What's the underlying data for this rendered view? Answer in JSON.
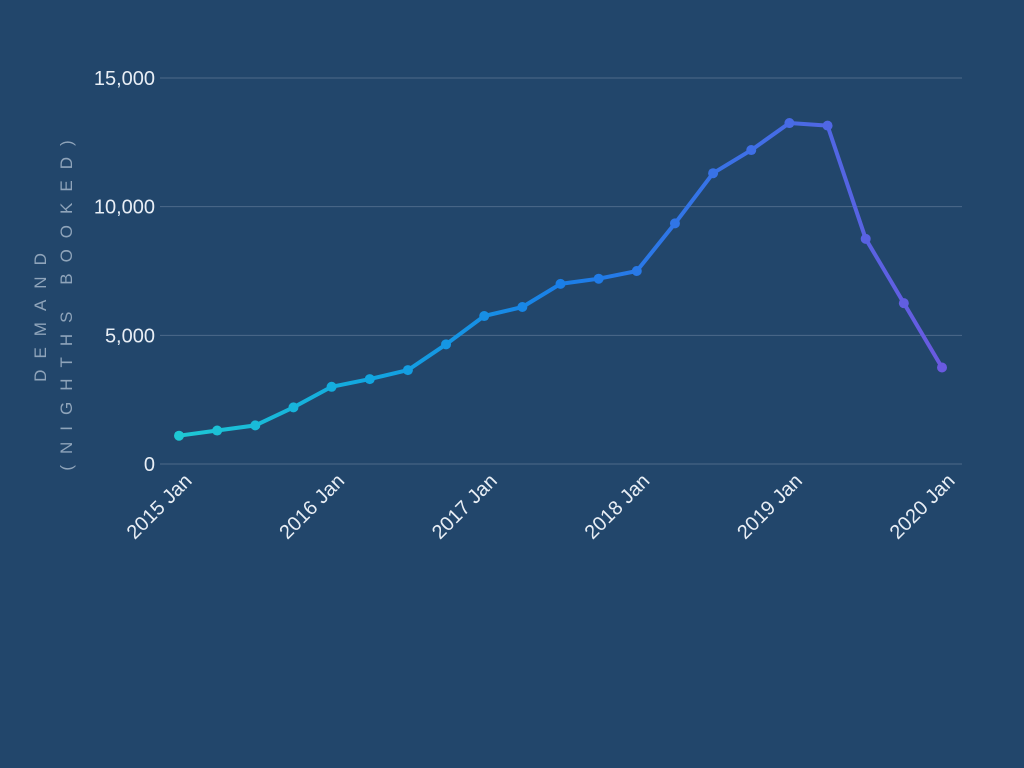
{
  "chart_data": {
    "type": "line",
    "title": "",
    "xlabel": "",
    "ylabel_lines": [
      "DEMAND",
      "(NIGHTHS BOOKED)"
    ],
    "ylim": [
      0,
      15000
    ],
    "y_ticks": [
      0,
      5000,
      10000,
      15000
    ],
    "y_tick_labels": [
      "0",
      "5,000",
      "10,000",
      "15,000"
    ],
    "x_ticks": [
      "2015-01",
      "2016-01",
      "2017-01",
      "2018-01",
      "2019-01",
      "2020-01"
    ],
    "x_tick_labels": [
      "2015 Jan",
      "2016 Jan",
      "2017 Jan",
      "2018 Jan",
      "2019 Jan",
      "2020 Jan"
    ],
    "grid": true,
    "colors": {
      "background": "#22466b",
      "grid": "#4d6a8a",
      "gradient": [
        "#1ec8d4",
        "#12a6e0",
        "#1a7fe8",
        "#3f6fe6",
        "#6a5ae0"
      ]
    },
    "series": [
      {
        "x": [
          "2015-01",
          "2015-04",
          "2015-07",
          "2015-10",
          "2016-01",
          "2016-04",
          "2016-07",
          "2016-10",
          "2017-01",
          "2017-04",
          "2017-07",
          "2017-10",
          "2018-01",
          "2018-04",
          "2018-07",
          "2018-10",
          "2019-01",
          "2019-04",
          "2019-07",
          "2019-10",
          "2020-01"
        ],
        "values": [
          1100,
          1300,
          1500,
          2200,
          3000,
          3300,
          3650,
          4650,
          5750,
          6100,
          7000,
          7200,
          7500,
          9350,
          11300,
          12200,
          13250,
          13150,
          8750,
          6250,
          3750
        ]
      }
    ]
  }
}
